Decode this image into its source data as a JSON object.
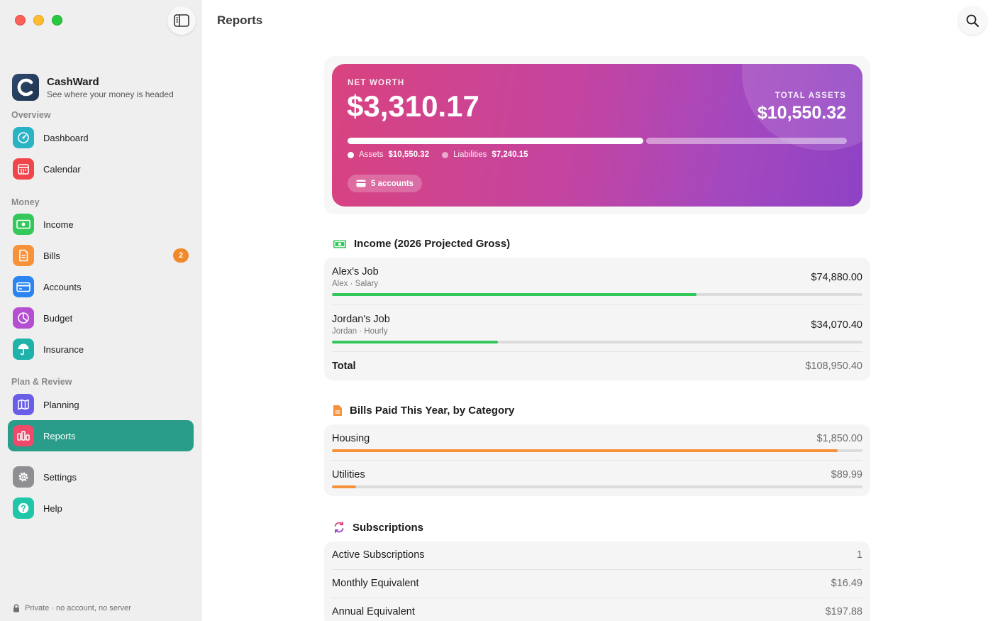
{
  "window": {
    "title": "Reports"
  },
  "brand": {
    "name": "CashWard",
    "tagline": "See where your money is headed"
  },
  "sidebar": {
    "sections": [
      {
        "label": "Overview",
        "items": [
          {
            "label": "Dashboard",
            "icon": "gauge-icon",
            "color": "#2ab3c4"
          },
          {
            "label": "Calendar",
            "icon": "calendar-icon",
            "color": "#f0454b"
          }
        ]
      },
      {
        "label": "Money",
        "items": [
          {
            "label": "Income",
            "icon": "banknote-icon",
            "color": "#34c759"
          },
          {
            "label": "Bills",
            "icon": "document-icon",
            "color": "#f7923b",
            "badge": "2"
          },
          {
            "label": "Accounts",
            "icon": "credit-card-icon",
            "color": "#2b84f0"
          },
          {
            "label": "Budget",
            "icon": "pie-chart-icon",
            "color": "#b44fd2"
          },
          {
            "label": "Insurance",
            "icon": "umbrella-icon",
            "color": "#1fb2ab"
          }
        ]
      },
      {
        "label": "Plan & Review",
        "items": [
          {
            "label": "Planning",
            "icon": "map-icon",
            "color": "#6a5de8"
          },
          {
            "label": "Reports",
            "icon": "bar-chart-icon",
            "color": "#ef4a6a",
            "active": true
          }
        ]
      }
    ],
    "footer_items": [
      {
        "label": "Settings",
        "icon": "gear-icon",
        "color": "#8e8e93"
      },
      {
        "label": "Help",
        "icon": "question-icon",
        "color": "#1fc6a8"
      }
    ],
    "privacy_note": "Private · no account, no server"
  },
  "net_worth": {
    "label": "NET WORTH",
    "value": "$3,310.17",
    "total_assets_label": "TOTAL ASSETS",
    "total_assets_value": "$10,550.32",
    "assets_label": "Assets",
    "assets_value": "$10,550.32",
    "liabilities_label": "Liabilities",
    "liabilities_value": "$7,240.15",
    "assets_fraction": 0.593,
    "accounts_pill": "5 accounts"
  },
  "income": {
    "title": "Income (2026 Projected Gross)",
    "rows": [
      {
        "name": "Alex's Job",
        "detail": "Alex · Salary",
        "amount": "$74,880.00",
        "fraction": 0.687
      },
      {
        "name": "Jordan's Job",
        "detail": "Jordan · Hourly",
        "amount": "$34,070.40",
        "fraction": 0.313
      }
    ],
    "total_label": "Total",
    "total_value": "$108,950.40"
  },
  "bills": {
    "title": "Bills Paid This Year, by Category",
    "rows": [
      {
        "name": "Housing",
        "amount": "$1,850.00",
        "fraction": 0.953
      },
      {
        "name": "Utilities",
        "amount": "$89.99",
        "fraction": 0.046
      }
    ]
  },
  "subscriptions": {
    "title": "Subscriptions",
    "rows": [
      {
        "name": "Active Subscriptions",
        "value": "1"
      },
      {
        "name": "Monthly Equivalent",
        "value": "$16.49"
      },
      {
        "name": "Annual Equivalent",
        "value": "$197.88"
      }
    ]
  }
}
